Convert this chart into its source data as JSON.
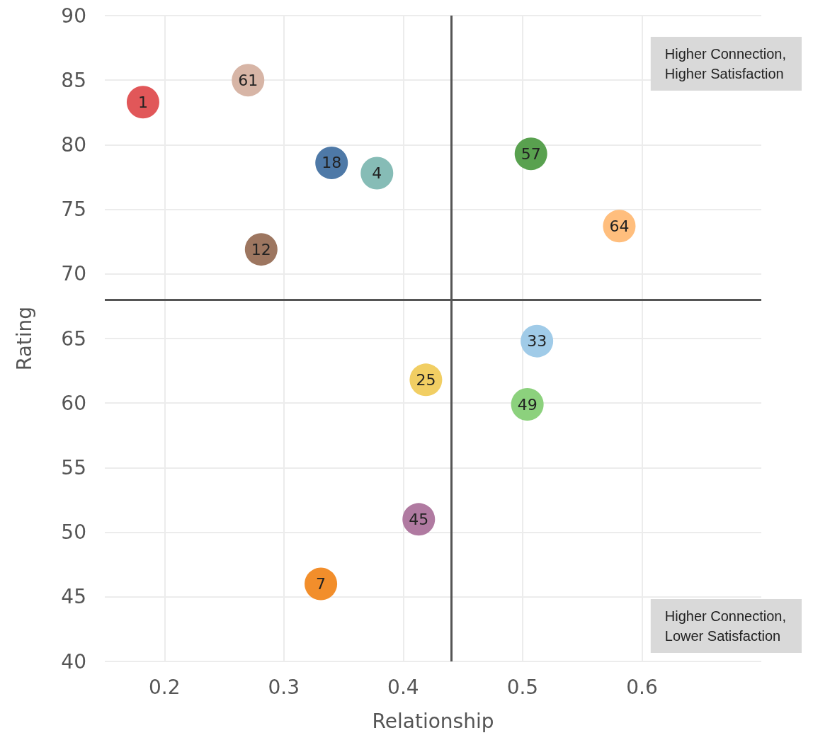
{
  "chart_data": {
    "type": "scatter",
    "xlabel": "Relationship",
    "ylabel": "Rating",
    "xlim": [
      0.15,
      0.7
    ],
    "xticks": [
      0.2,
      0.3,
      0.4,
      0.5,
      0.6
    ],
    "ylim": [
      40,
      90
    ],
    "yticks": [
      40,
      45,
      50,
      55,
      60,
      65,
      70,
      75,
      80,
      85,
      90
    ],
    "grid": true,
    "marker": "circle",
    "series": [
      {
        "name": "1",
        "color": "#e15759",
        "x": [
          0.182
        ],
        "values": [
          83.3
        ]
      },
      {
        "name": "61",
        "color": "#d7b5a6",
        "x": [
          0.27
        ],
        "values": [
          85.0
        ]
      },
      {
        "name": "18",
        "color": "#4e79a7",
        "x": [
          0.34
        ],
        "values": [
          78.6
        ]
      },
      {
        "name": "4",
        "color": "#86bcb6",
        "x": [
          0.378
        ],
        "values": [
          77.8
        ]
      },
      {
        "name": "57",
        "color": "#59a14f",
        "x": [
          0.507
        ],
        "values": [
          79.3
        ]
      },
      {
        "name": "64",
        "color": "#ffbe7d",
        "x": [
          0.581
        ],
        "values": [
          73.7
        ]
      },
      {
        "name": "12",
        "color": "#9d7660",
        "x": [
          0.281
        ],
        "values": [
          71.9
        ]
      },
      {
        "name": "33",
        "color": "#a0cbe8",
        "x": [
          0.512
        ],
        "values": [
          64.8
        ]
      },
      {
        "name": "25",
        "color": "#f1ce63",
        "x": [
          0.419
        ],
        "values": [
          61.8
        ]
      },
      {
        "name": "49",
        "color": "#8cd17d",
        "x": [
          0.504
        ],
        "values": [
          59.9
        ]
      },
      {
        "name": "45",
        "color": "#b07aa1",
        "x": [
          0.413
        ],
        "values": [
          51.0
        ]
      },
      {
        "name": "7",
        "color": "#f28e2b",
        "x": [
          0.331
        ],
        "values": [
          46.0
        ]
      }
    ],
    "ref_lines": [
      {
        "axis": "x",
        "value": 0.44,
        "color": "#555555"
      },
      {
        "axis": "y",
        "value": 68,
        "color": "#555555"
      }
    ],
    "annotations": [
      "Higher Connection,\nHigher Satisfaction",
      "Higher Connection,\nLower Satisfaction"
    ]
  }
}
